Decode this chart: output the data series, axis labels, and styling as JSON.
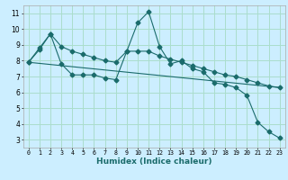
{
  "title": "",
  "xlabel": "Humidex (Indice chaleur)",
  "bg_color": "#cceeff",
  "grid_color": "#aaddcc",
  "line_color": "#1a6b6b",
  "xlim": [
    -0.5,
    23.5
  ],
  "ylim": [
    2.5,
    11.5
  ],
  "yticks": [
    3,
    4,
    5,
    6,
    7,
    8,
    9,
    10,
    11
  ],
  "xticks": [
    0,
    1,
    2,
    3,
    4,
    5,
    6,
    7,
    8,
    9,
    10,
    11,
    12,
    13,
    14,
    15,
    16,
    17,
    18,
    19,
    20,
    21,
    22,
    23
  ],
  "series1_x": [
    0,
    1,
    2,
    3,
    4,
    5,
    6,
    7,
    8,
    9,
    10,
    11,
    12,
    13,
    14,
    15,
    16,
    17,
    18,
    19,
    20,
    21,
    22,
    23
  ],
  "series1_y": [
    7.9,
    8.7,
    9.7,
    7.8,
    7.1,
    7.1,
    7.1,
    6.9,
    6.8,
    8.6,
    10.4,
    11.1,
    8.9,
    7.8,
    8.0,
    7.5,
    7.3,
    6.6,
    6.5,
    6.3,
    5.8,
    4.1,
    3.5,
    3.1
  ],
  "series2_x": [
    0,
    1,
    2,
    3,
    4,
    5,
    6,
    7,
    8,
    9,
    10,
    11,
    12,
    13,
    14,
    15,
    16,
    17,
    18,
    19,
    20,
    21,
    22,
    23
  ],
  "series2_y": [
    7.9,
    8.8,
    9.7,
    8.9,
    8.6,
    8.4,
    8.2,
    8.0,
    7.9,
    8.6,
    8.6,
    8.6,
    8.3,
    8.1,
    7.9,
    7.7,
    7.5,
    7.3,
    7.1,
    7.0,
    6.8,
    6.6,
    6.4,
    6.3
  ],
  "series3_x": [
    0,
    23
  ],
  "series3_y": [
    7.9,
    6.3
  ],
  "marker_size": 2.5,
  "linewidth": 0.8
}
